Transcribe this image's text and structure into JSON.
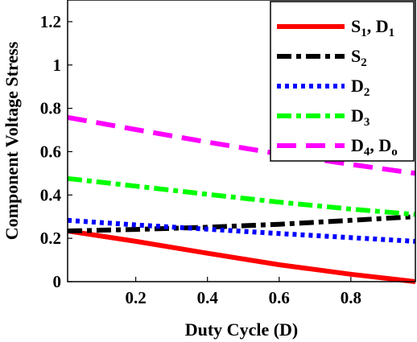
{
  "chart_data": {
    "type": "line",
    "xlabel": "Duty Cycle (D)",
    "ylabel": "Component Voltage Stress",
    "xlim": [
      0.01,
      0.98
    ],
    "ylim": [
      0,
      1.3
    ],
    "xticks": [
      0.2,
      0.4,
      0.6,
      0.8
    ],
    "yticks": [
      0,
      0.2,
      0.4,
      0.6,
      0.8,
      1,
      1.2
    ],
    "xtick_labels": [
      "0.2",
      "0.4",
      "0.6",
      "0.8"
    ],
    "ytick_labels": [
      "0",
      "0.2",
      "0.4",
      "0.6",
      "0.8",
      "1",
      "1.2"
    ],
    "grid": false,
    "legend_position": "top-right",
    "series": [
      {
        "name": "S1, D1",
        "legend_parts": [
          {
            "t": "S"
          },
          {
            "t": "1",
            "sub": true
          },
          {
            "t": ", D"
          },
          {
            "t": "1",
            "sub": true
          }
        ],
        "color": "#ff0000",
        "style": "solid",
        "points": [
          [
            0.01,
            0.234
          ],
          [
            0.2,
            0.186
          ],
          [
            0.4,
            0.131
          ],
          [
            0.6,
            0.078
          ],
          [
            0.8,
            0.034
          ],
          [
            0.98,
            0.0
          ]
        ]
      },
      {
        "name": "S2",
        "legend_parts": [
          {
            "t": "S"
          },
          {
            "t": "2",
            "sub": true
          }
        ],
        "color": "#000000",
        "style": "dashdot",
        "points": [
          [
            0.01,
            0.234
          ],
          [
            0.2,
            0.241
          ],
          [
            0.4,
            0.251
          ],
          [
            0.6,
            0.265
          ],
          [
            0.8,
            0.283
          ],
          [
            0.98,
            0.3
          ]
        ]
      },
      {
        "name": "D2",
        "legend_parts": [
          {
            "t": "D"
          },
          {
            "t": "2",
            "sub": true
          }
        ],
        "color": "#0000ff",
        "style": "dotted",
        "points": [
          [
            0.01,
            0.283
          ],
          [
            0.2,
            0.262
          ],
          [
            0.4,
            0.242
          ],
          [
            0.6,
            0.222
          ],
          [
            0.8,
            0.203
          ],
          [
            0.98,
            0.186
          ]
        ]
      },
      {
        "name": "D3",
        "legend_parts": [
          {
            "t": "D"
          },
          {
            "t": "3",
            "sub": true
          }
        ],
        "color": "#00ff00",
        "style": "dashdot",
        "points": [
          [
            0.01,
            0.476
          ],
          [
            0.2,
            0.441
          ],
          [
            0.4,
            0.403
          ],
          [
            0.6,
            0.367
          ],
          [
            0.8,
            0.335
          ],
          [
            0.98,
            0.31
          ]
        ]
      },
      {
        "name": "D4, Do",
        "legend_parts": [
          {
            "t": "D"
          },
          {
            "t": "4",
            "sub": true
          },
          {
            "t": ", D"
          },
          {
            "t": "o",
            "sub": true
          }
        ],
        "color": "#ff00ff",
        "style": "dashed",
        "points": [
          [
            0.01,
            0.758
          ],
          [
            0.2,
            0.702
          ],
          [
            0.4,
            0.644
          ],
          [
            0.6,
            0.59
          ],
          [
            0.8,
            0.541
          ],
          [
            0.98,
            0.5
          ]
        ]
      }
    ]
  }
}
